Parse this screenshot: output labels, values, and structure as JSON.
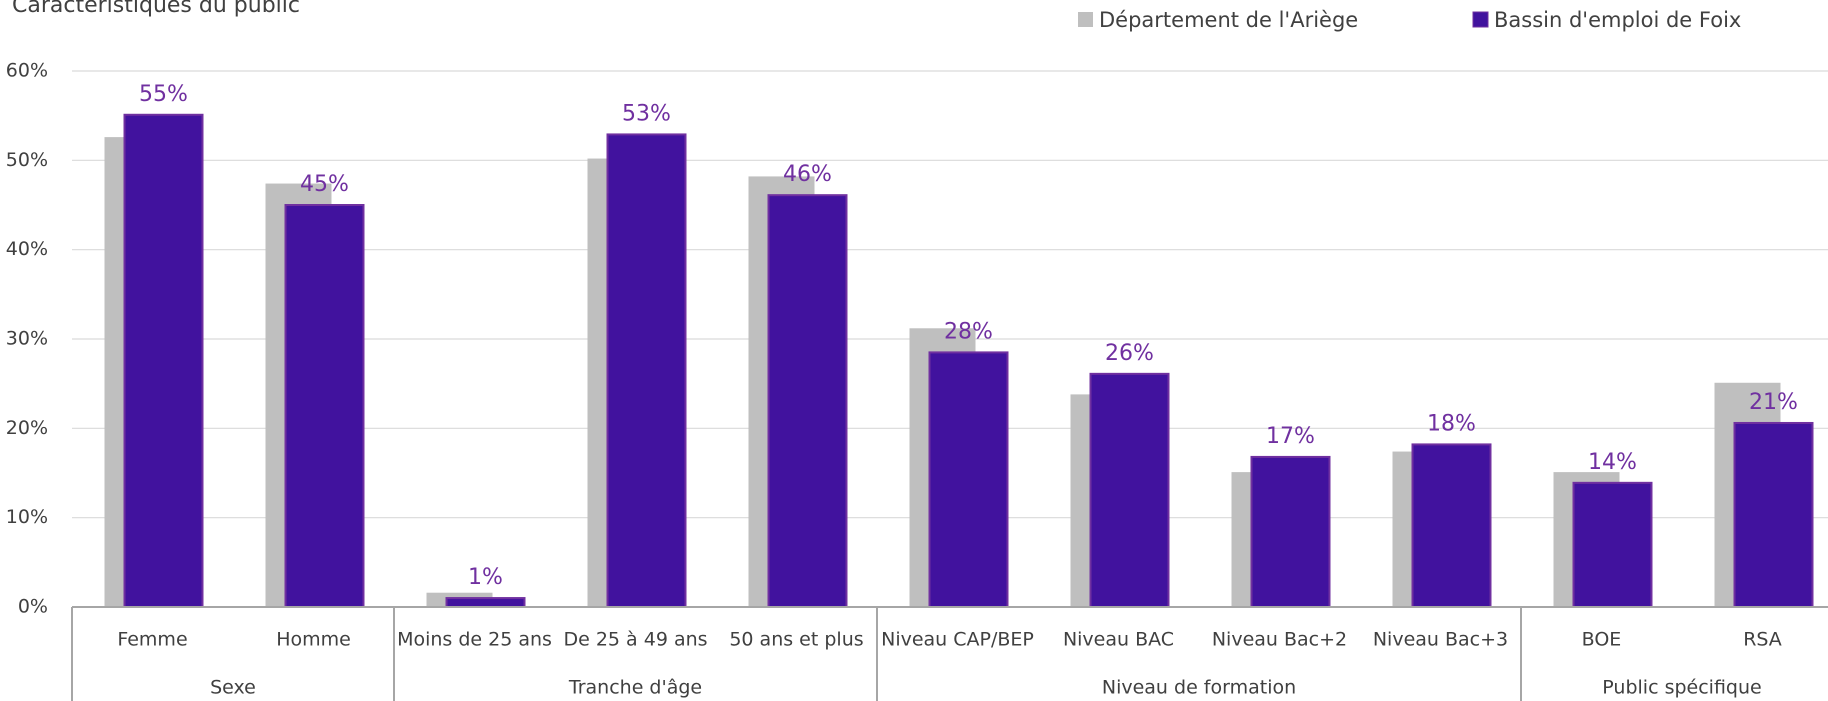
{
  "chart_data": {
    "type": "bar",
    "title": "Caractéristiques du public",
    "categories": [
      "Femme",
      "Homme",
      "Moins de 25 ans",
      "De 25 à 49 ans",
      "50 ans et plus",
      "Niveau CAP/BEP",
      "Niveau BAC",
      "Niveau Bac+2",
      "Niveau Bac+3",
      "BOE",
      "RSA"
    ],
    "groups": [
      {
        "label": "Sexe",
        "count": 2
      },
      {
        "label": "Tranche d'âge",
        "count": 3
      },
      {
        "label": "Niveau de formation",
        "count": 4
      },
      {
        "label": "Public spécifique",
        "count": 2
      }
    ],
    "series": [
      {
        "name": "Département de l'Ariège",
        "color": "#bfbfbf",
        "values": [
          52.6,
          47.4,
          1.6,
          50.2,
          48.2,
          31.2,
          23.8,
          15.1,
          17.4,
          15.1,
          25.1
        ]
      },
      {
        "name": "Bassin d'emploi de Foix",
        "color": "#41129e",
        "values": [
          55.1,
          45,
          1,
          52.9,
          46.1,
          28.5,
          26.1,
          16.8,
          18.2,
          13.9,
          20.6
        ],
        "value_labels": [
          "55%",
          "45%",
          "1%",
          "53%",
          "46%",
          "28%",
          "26%",
          "17%",
          "18%",
          "14%",
          "21%"
        ]
      }
    ],
    "ylim": [
      0,
      60
    ],
    "yticks": [
      {
        "value": 0,
        "label": "0%"
      },
      {
        "value": 10,
        "label": "10%"
      },
      {
        "value": 20,
        "label": "20%"
      },
      {
        "value": 30,
        "label": "30%"
      },
      {
        "value": 40,
        "label": "40%"
      },
      {
        "value": 50,
        "label": "50%"
      },
      {
        "value": 60,
        "label": "60%"
      }
    ],
    "grid": true,
    "legend": "top"
  }
}
